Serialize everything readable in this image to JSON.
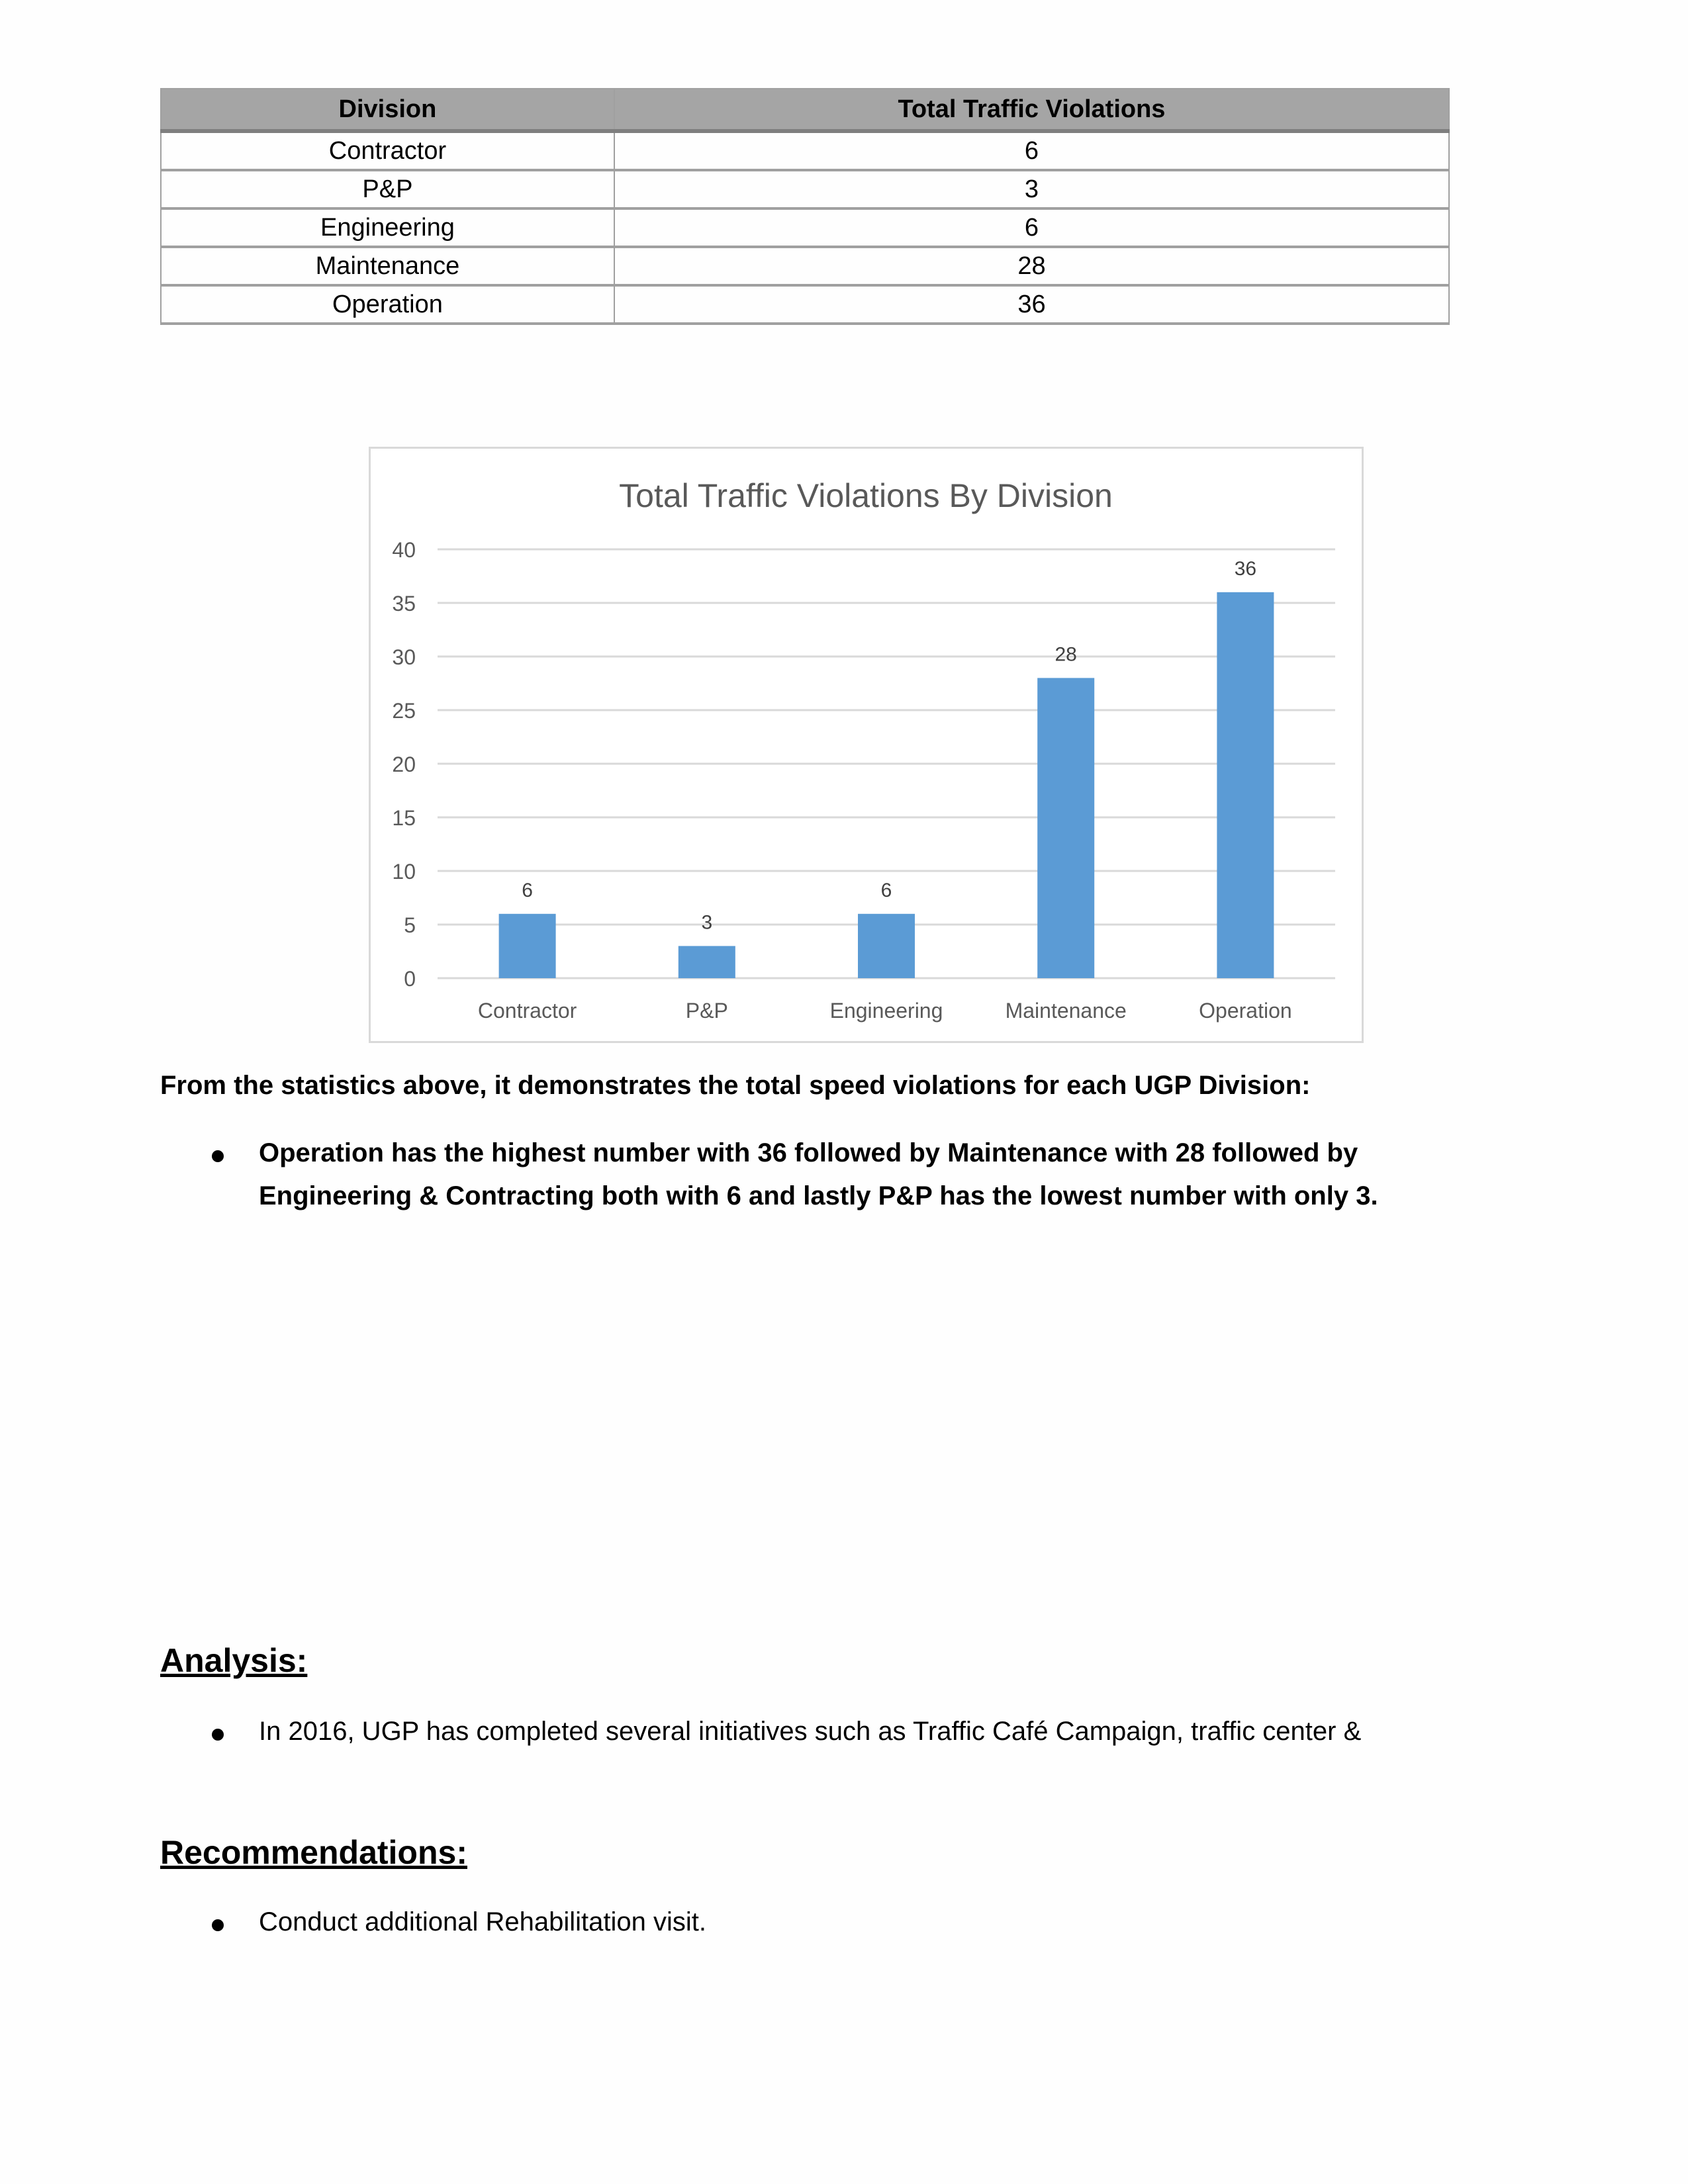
{
  "table": {
    "headers": [
      "Division",
      "Total Traffic Violations"
    ],
    "rows": [
      [
        "Contractor",
        "6"
      ],
      [
        "P&P",
        "3"
      ],
      [
        "Engineering",
        "6"
      ],
      [
        "Maintenance",
        "28"
      ],
      [
        "Operation",
        "36"
      ]
    ]
  },
  "chart_data": {
    "type": "bar",
    "title": "Total Traffic Violations By Division",
    "categories": [
      "Contractor",
      "P&P",
      "Engineering",
      "Maintenance",
      "Operation"
    ],
    "values": [
      6,
      3,
      6,
      28,
      36
    ],
    "data_labels": [
      "6",
      "3",
      "6",
      "28",
      "36"
    ],
    "yticks": [
      "0",
      "5",
      "10",
      "15",
      "20",
      "25",
      "30",
      "35",
      "40"
    ],
    "ylim": [
      0,
      40
    ],
    "grid": true,
    "bar_color": "#5b9bd5",
    "xlabel": "",
    "ylabel": ""
  },
  "summary": {
    "intro": "From the statistics above, it demonstrates the total speed violations for each UGP Division:",
    "bullet_line1": "Operation has the highest number with 36 followed by Maintenance with 28 followed by",
    "bullet_line2": "Engineering & Contracting both with 6 and lastly P&P has the lowest number with only 3."
  },
  "analysis": {
    "heading": "Analysis:",
    "bullet": "In 2016, UGP has completed several initiatives such as Traffic Café Campaign, traffic center &"
  },
  "recommendations": {
    "heading": "Recommendations:",
    "bullet": "Conduct additional Rehabilitation visit."
  }
}
